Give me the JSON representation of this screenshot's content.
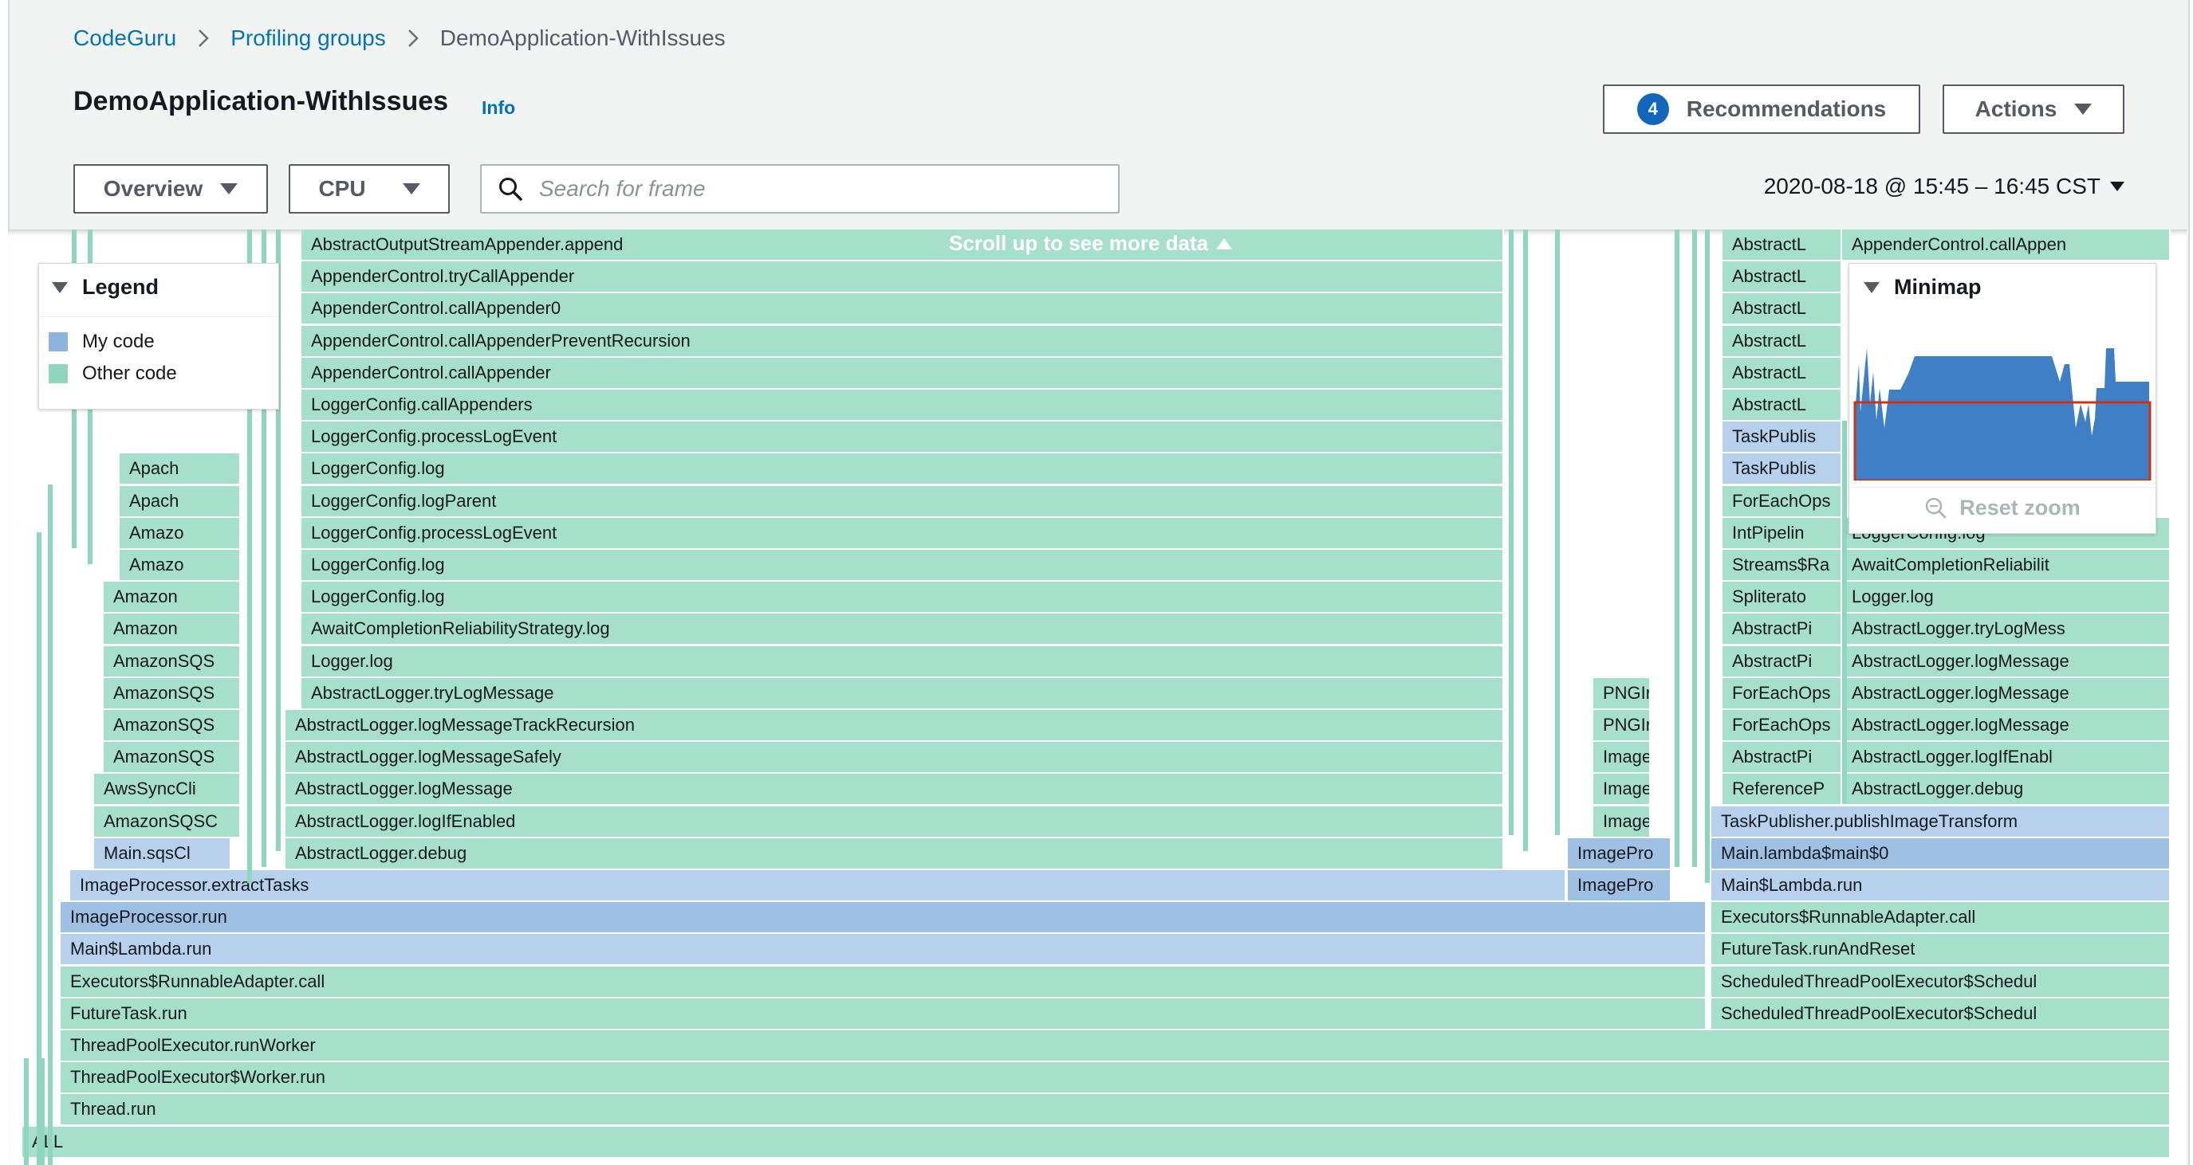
{
  "breadcrumb": {
    "items": [
      "CodeGuru",
      "Profiling groups"
    ],
    "current": "DemoApplication-WithIssues"
  },
  "page": {
    "title": "DemoApplication-WithIssues",
    "info_label": "Info"
  },
  "header_actions": {
    "recommendations_count": "4",
    "recommendations_label": "Recommendations",
    "actions_label": "Actions"
  },
  "toolbar": {
    "view_select": "Overview",
    "metric_select": "CPU",
    "search_placeholder": "Search for frame",
    "time_range": "2020-08-18 @ 15:45 – 16:45 CST"
  },
  "flame": {
    "scroll_hint": "Scroll up to see more data",
    "colors": {
      "other_light": "#a6e0cb",
      "other_dark": "#8fd6bd",
      "my_dark": "#9ec0e3",
      "my_light": "#b7d1ec"
    },
    "rows": [
      [
        "AbstractOutputStreamAppender.append",
        "AbstractL",
        "AppenderControl.callAppen"
      ],
      [
        "AppenderControl.tryCallAppender",
        "AbstractL",
        ""
      ],
      [
        "AppenderControl.callAppender0",
        "AbstractL",
        ""
      ],
      [
        "AppenderControl.callAppenderPreventRecursion",
        "AbstractL",
        ""
      ],
      [
        "AppenderControl.callAppender",
        "AbstractL",
        ""
      ],
      [
        "LoggerConfig.callAppenders",
        "AbstractL",
        ""
      ],
      [
        "LoggerConfig.processLogEvent",
        "TaskPublis",
        ""
      ],
      [
        "Apach",
        "LoggerConfig.log",
        "TaskPublis"
      ],
      [
        "Apach",
        "LoggerConfig.logParent",
        "ForEachOps"
      ],
      [
        "Amazo",
        "LoggerConfig.processLogEvent",
        "IntPipelin",
        "LoggerConfig.log"
      ],
      [
        "Amazo",
        "LoggerConfig.log",
        "Streams$Ra",
        "AwaitCompletionReliabilit"
      ],
      [
        "Amazon",
        "LoggerConfig.log",
        "Spliterato",
        "Logger.log"
      ],
      [
        "Amazon",
        "AwaitCompletionReliabilityStrategy.log",
        "AbstractPi",
        "AbstractLogger.tryLogMess"
      ],
      [
        "AmazonSQS",
        "Logger.log",
        "AbstractPi",
        "AbstractLogger.logMessage"
      ],
      [
        "AmazonSQS",
        "AbstractLogger.tryLogMessage",
        "PNGIm",
        "ForEachOps",
        "AbstractLogger.logMessage"
      ],
      [
        "AmazonSQS",
        "AbstractLogger.logMessageTrackRecursion",
        "PNGIm",
        "ForEachOps",
        "AbstractLogger.logMessage"
      ],
      [
        "AmazonSQS",
        "AbstractLogger.logMessageSafely",
        "Image",
        "AbstractPi",
        "AbstractLogger.logIfEnabl"
      ],
      [
        "AwsSyncCli",
        "AbstractLogger.logMessage",
        "Image",
        "ReferenceP",
        "AbstractLogger.debug"
      ],
      [
        "AmazonSQSC",
        "AbstractLogger.logIfEnabled",
        "Image",
        "TaskPublisher.publishImageTransform"
      ],
      [
        "Main.sqsCl",
        "AbstractLogger.debug",
        "ImagePro",
        "Main.lambda$main$0"
      ],
      [
        "ImageProcessor.extractTasks",
        "ImagePro",
        "Main$Lambda.run"
      ],
      [
        "ImageProcessor.run",
        "Executors$RunnableAdapter.call"
      ],
      [
        "Main$Lambda.run",
        "FutureTask.runAndReset"
      ],
      [
        "Executors$RunnableAdapter.call",
        "ScheduledThreadPoolExecutor$Schedul"
      ],
      [
        "FutureTask.run",
        "ScheduledThreadPoolExecutor$Schedul"
      ],
      [
        "ThreadPoolExecutor.runWorker"
      ],
      [
        "ThreadPoolExecutor$Worker.run"
      ],
      [
        "Thread.run"
      ],
      [
        "ALL"
      ]
    ]
  },
  "legend": {
    "title": "Legend",
    "items": [
      {
        "label": "My code",
        "color": "#8db4dc"
      },
      {
        "label": "Other code",
        "color": "#8fd6bd"
      }
    ]
  },
  "minimap": {
    "title": "Minimap",
    "reset_label": "Reset zoom",
    "fill_color": "#3f7fc6",
    "viewport_color": "#d13212"
  }
}
